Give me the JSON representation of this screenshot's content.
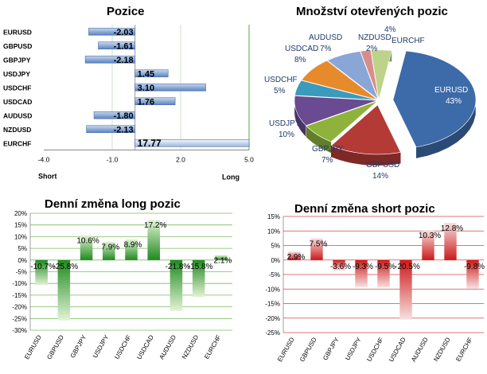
{
  "chart_data": [
    {
      "type": "bar",
      "orientation": "horizontal",
      "title": "Pozice",
      "categories": [
        "EURUSD",
        "GBPUSD",
        "GBPJPY",
        "USDJPY",
        "USDCHF",
        "USDCAD",
        "AUDUSD",
        "NZDUSD",
        "EURCHF"
      ],
      "values": [
        -2.03,
        -1.61,
        -2.18,
        1.45,
        3.1,
        1.76,
        -1.8,
        -2.13,
        17.77
      ],
      "value_labels": [
        "-2.03",
        "-1.61",
        "-2.18",
        "1.45",
        "3.10",
        "1.76",
        "-1.80",
        "-2.13",
        "17.77"
      ],
      "xlim": [
        -4.0,
        5.0
      ],
      "ticks": [
        -4.0,
        -1.0,
        2.0,
        5.0
      ],
      "tick_labels": [
        "-4.0",
        "-1.0",
        "2.0",
        "5.0"
      ],
      "annotations": {
        "left": "Short",
        "right": "Long"
      },
      "grid": true,
      "colors": {
        "bar": "#5b82c0",
        "bar_light": "#c8d8ee",
        "grid": "#6bbf59"
      }
    },
    {
      "type": "pie",
      "title": "Množství otevřených pozic",
      "labels": [
        "EURUSD",
        "GBPUSD",
        "GBPJPY",
        "USDJPY",
        "USDCHF",
        "USDCAD",
        "AUDUSD",
        "NZDUSD",
        "EURCHF"
      ],
      "values": [
        43,
        14,
        7,
        10,
        5,
        8,
        7,
        2,
        4
      ],
      "value_labels": [
        "43%",
        "14%",
        "7%",
        "10%",
        "5%",
        "8%",
        "7%",
        "2%",
        "4%"
      ],
      "colors": [
        "#3d6aa8",
        "#b43a36",
        "#8fb23c",
        "#6a4a91",
        "#3a9bbd",
        "#e68a2c",
        "#8aa6d6",
        "#d98d8b",
        "#bcd389"
      ]
    },
    {
      "type": "bar",
      "title": "Denní změna long pozic",
      "categories": [
        "EURUSD",
        "GBPUSD",
        "GBPJPY",
        "USDJPY",
        "USDCHF",
        "USDCAD",
        "AUDUSD",
        "NZDUSD",
        "EURCHF"
      ],
      "values": [
        -10.7,
        -25.8,
        10.6,
        7.9,
        8.9,
        17.2,
        -21.8,
        -15.8,
        2.1
      ],
      "value_labels": [
        "-10.7%",
        "-25.8%",
        "10.6%",
        "7.9%",
        "8.9%",
        "17.2%",
        "-21.8%",
        "-15.8%",
        "2.1%"
      ],
      "ylim": [
        -30,
        20
      ],
      "ticks": [
        20,
        15,
        10,
        5,
        0,
        -5,
        -10,
        -15,
        -20,
        -25,
        -30
      ],
      "tick_labels": [
        "20%",
        "15%",
        "10%",
        "5%",
        "0%",
        "-5%",
        "-10%",
        "-15%",
        "-20%",
        "-25%",
        "-30%"
      ],
      "grid": true,
      "colors": {
        "bar": "#1f8a1f",
        "bar_light": "#e3f3d6",
        "grid": "#5aaa3c"
      }
    },
    {
      "type": "bar",
      "title": "Denní změna short pozic",
      "categories": [
        "EURUSD",
        "GBPUSD",
        "GBPJPY",
        "USDJPY",
        "USDCHF",
        "USDCAD",
        "AUDUSD",
        "NZDUSD",
        "EURCHF"
      ],
      "values": [
        2.9,
        7.5,
        -3.6,
        -9.3,
        -9.5,
        -20.5,
        10.3,
        12.8,
        -9.8
      ],
      "value_labels": [
        "2.9%",
        "7.5%",
        "-3.6%",
        "-9.3%",
        "-9.5%",
        "-20.5%",
        "10.3%",
        "12.8%",
        "-9.8%"
      ],
      "ylim": [
        -25,
        15
      ],
      "ticks": [
        15,
        10,
        5,
        0,
        -5,
        -10,
        -15,
        -20,
        -25
      ],
      "tick_labels": [
        "15%",
        "10%",
        "5%",
        "0%",
        "-5%",
        "-10%",
        "-15%",
        "-20%",
        "-25%"
      ],
      "grid": true,
      "colors": {
        "bar": "#cc1a1a",
        "bar_light": "#f7e0e0",
        "grid": "#cc1a1a"
      }
    }
  ]
}
